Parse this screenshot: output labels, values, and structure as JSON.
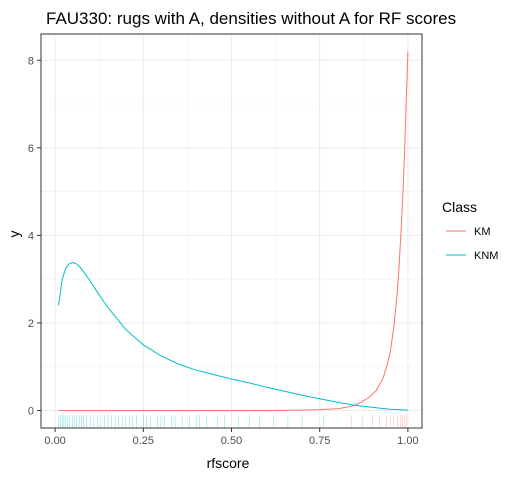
{
  "chart_data": {
    "type": "line",
    "title": "FAU330: rugs with A, densities without A for RF scores",
    "xlabel": "rfscore",
    "ylabel": "y",
    "xlim": [
      -0.04,
      1.04
    ],
    "ylim": [
      -0.4,
      8.6
    ],
    "x_ticks": [
      0.0,
      0.25,
      0.5,
      0.75,
      1.0
    ],
    "x_tick_labels": [
      "0.00",
      "0.25",
      "0.50",
      "0.75",
      "1.00"
    ],
    "y_ticks": [
      0,
      2,
      4,
      6,
      8
    ],
    "y_tick_labels": [
      "0",
      "2",
      "4",
      "6",
      "8"
    ],
    "grid": true,
    "legend": {
      "title": "Class",
      "position": "right",
      "entries": [
        {
          "label": "KM",
          "color": "#F8766D"
        },
        {
          "label": "KNM",
          "color": "#00BFC4"
        }
      ]
    },
    "series": [
      {
        "name": "KM",
        "color": "#F8766D",
        "x": [
          0.01,
          0.2,
          0.4,
          0.6,
          0.7,
          0.75,
          0.8,
          0.83,
          0.85,
          0.87,
          0.89,
          0.91,
          0.93,
          0.94,
          0.95,
          0.96,
          0.97,
          0.975,
          0.98,
          0.985,
          0.99,
          0.995,
          1.0
        ],
        "y": [
          0.0,
          0.0,
          0.0,
          0.0,
          0.01,
          0.02,
          0.04,
          0.08,
          0.12,
          0.2,
          0.3,
          0.45,
          0.75,
          1.0,
          1.35,
          1.9,
          2.7,
          3.3,
          4.0,
          4.8,
          5.8,
          7.0,
          8.2
        ]
      },
      {
        "name": "KNM",
        "color": "#00BFC4",
        "x": [
          0.01,
          0.02,
          0.03,
          0.04,
          0.05,
          0.06,
          0.07,
          0.08,
          0.1,
          0.12,
          0.15,
          0.18,
          0.2,
          0.25,
          0.3,
          0.35,
          0.4,
          0.45,
          0.5,
          0.55,
          0.6,
          0.65,
          0.7,
          0.75,
          0.8,
          0.85,
          0.9,
          0.95,
          1.0
        ],
        "y": [
          2.4,
          3.0,
          3.25,
          3.35,
          3.38,
          3.35,
          3.28,
          3.18,
          2.95,
          2.7,
          2.35,
          2.05,
          1.85,
          1.5,
          1.25,
          1.06,
          0.92,
          0.82,
          0.72,
          0.63,
          0.53,
          0.44,
          0.35,
          0.27,
          0.19,
          0.12,
          0.07,
          0.03,
          0.01
        ]
      }
    ],
    "rugs": [
      {
        "name": "KNM",
        "color": "#00BFC4",
        "x": [
          0.01,
          0.015,
          0.02,
          0.025,
          0.03,
          0.035,
          0.04,
          0.05,
          0.055,
          0.06,
          0.07,
          0.075,
          0.08,
          0.09,
          0.1,
          0.11,
          0.12,
          0.13,
          0.14,
          0.15,
          0.16,
          0.17,
          0.18,
          0.19,
          0.2,
          0.21,
          0.22,
          0.23,
          0.25,
          0.26,
          0.27,
          0.29,
          0.3,
          0.31,
          0.33,
          0.34,
          0.36,
          0.38,
          0.4,
          0.41,
          0.43,
          0.46,
          0.48,
          0.52,
          0.55,
          0.58,
          0.62,
          0.66,
          0.7,
          0.76
        ]
      },
      {
        "name": "KM",
        "color": "#F8766D",
        "x": [
          0.84,
          0.87,
          0.9,
          0.92,
          0.94,
          0.95,
          0.96,
          0.97,
          0.98,
          0.985,
          0.99,
          0.995
        ]
      }
    ]
  }
}
